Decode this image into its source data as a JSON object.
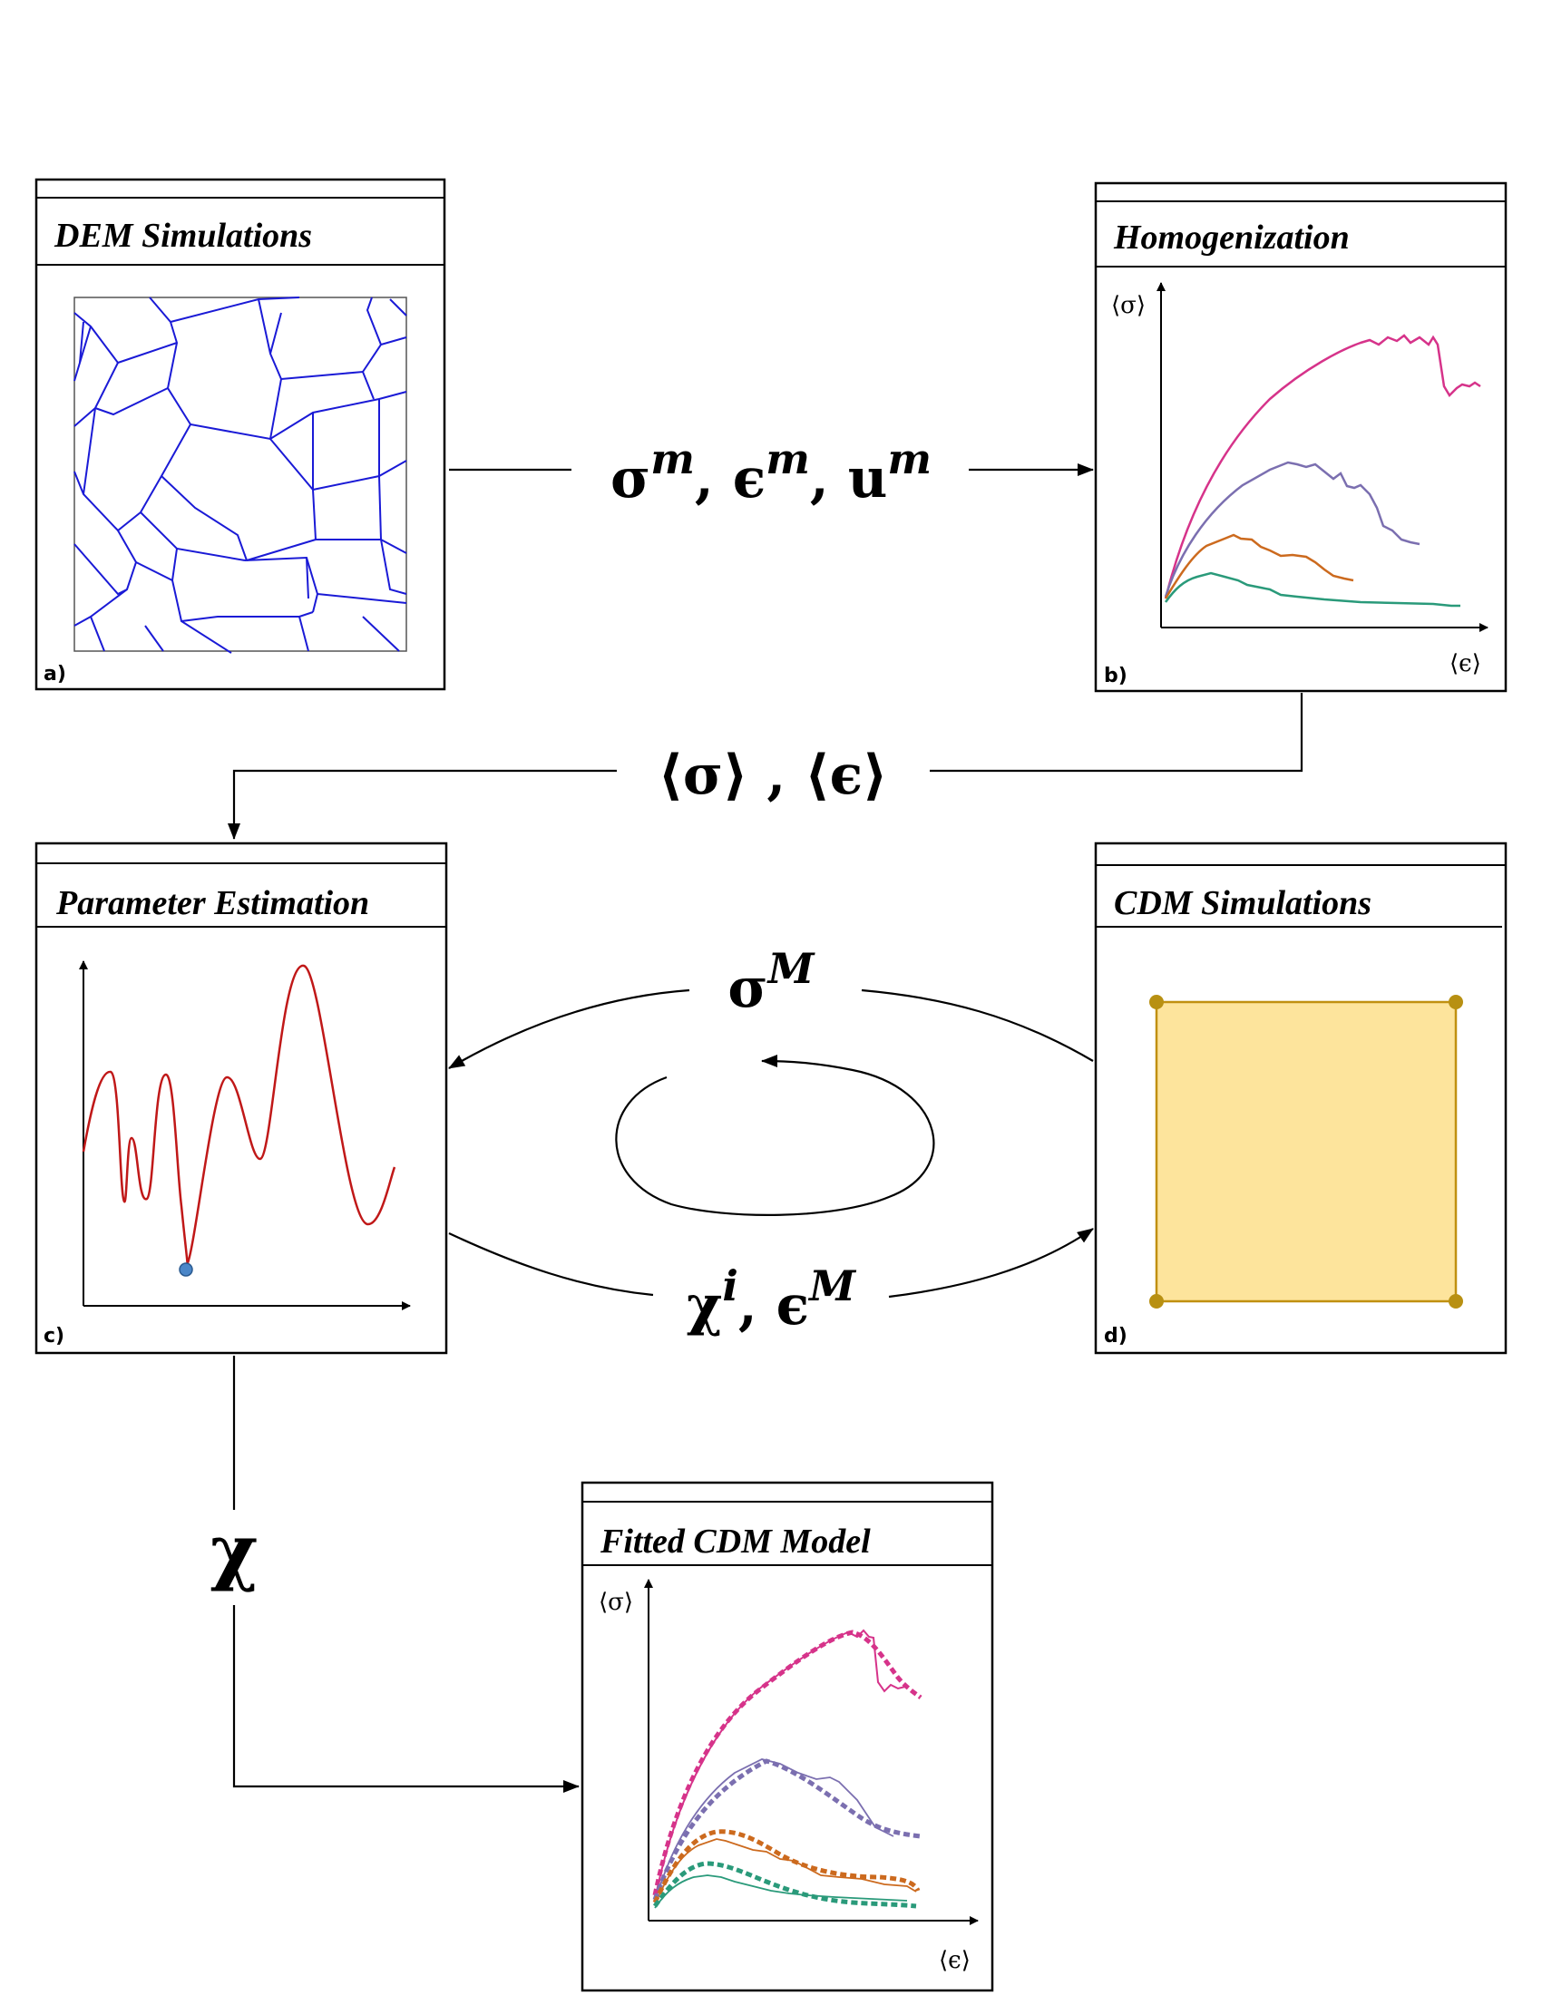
{
  "panels": {
    "a": {
      "title": "DEM Simulations",
      "letter": "a)"
    },
    "b": {
      "title": "Homogenization",
      "letter": "b)",
      "y_label": "⟨σ⟩",
      "x_label": "⟨ϵ⟩"
    },
    "c": {
      "title": "Parameter Estimation",
      "letter": "c)"
    },
    "d": {
      "title": "CDM Simulations",
      "letter": "d)"
    },
    "e": {
      "title": "Fitted CDM Model",
      "y_label": "⟨σ⟩",
      "x_label": "⟨ϵ⟩"
    }
  },
  "arrows": {
    "dem_to_homog": "σᵐ, ϵᵐ, uᵐ",
    "homog_to_param": "⟨σ⟩ , ⟨ϵ⟩",
    "cdm_to_param": "σᴹ",
    "param_to_cdm": "χⁱ, ϵᴹ",
    "param_to_fitted": "χ"
  },
  "colors": {
    "grain_lines": "#1a1ad6",
    "pink": "#d6338a",
    "purple": "#7b6fb0",
    "orange": "#cc6a1e",
    "green": "#2a9a7a",
    "objective_curve": "#c01818",
    "minimum_marker": "#4a86c8",
    "cdm_fill": "#fde49c",
    "cdm_stroke": "#c09010"
  }
}
